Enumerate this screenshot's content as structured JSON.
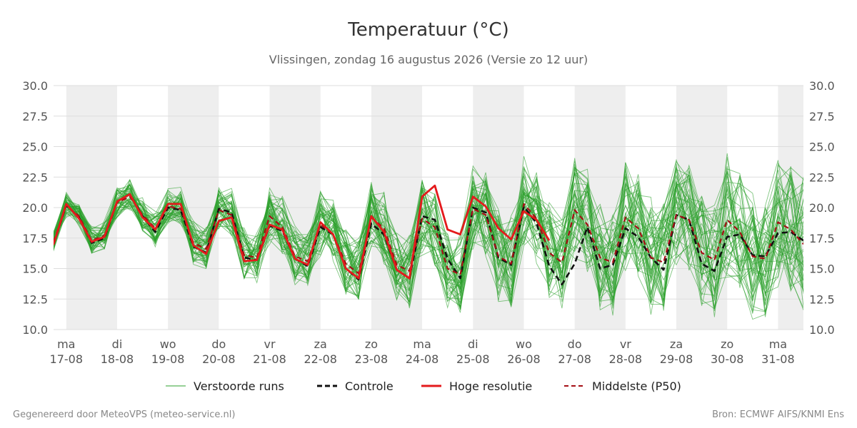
{
  "chart_data": {
    "type": "line",
    "title": "Temperatuur (°C)",
    "subtitle": "Vlissingen, zondag 16 augustus 2026 (Versie zo 12 uur)",
    "ylim": [
      10,
      30
    ],
    "yticks": [
      "10.0",
      "12.5",
      "15.0",
      "17.5",
      "20.0",
      "22.5",
      "25.0",
      "27.5",
      "30.0"
    ],
    "xlim": [
      16.75,
      31.5
    ],
    "x_ticks": [
      {
        "x": 17,
        "day": "ma",
        "date": "17-08"
      },
      {
        "x": 18,
        "day": "di",
        "date": "18-08"
      },
      {
        "x": 19,
        "day": "wo",
        "date": "19-08"
      },
      {
        "x": 20,
        "day": "do",
        "date": "20-08"
      },
      {
        "x": 21,
        "day": "vr",
        "date": "21-08"
      },
      {
        "x": 22,
        "day": "za",
        "date": "22-08"
      },
      {
        "x": 23,
        "day": "zo",
        "date": "23-08"
      },
      {
        "x": 24,
        "day": "ma",
        "date": "24-08"
      },
      {
        "x": 25,
        "day": "di",
        "date": "25-08"
      },
      {
        "x": 26,
        "day": "wo",
        "date": "26-08"
      },
      {
        "x": 27,
        "day": "do",
        "date": "27-08"
      },
      {
        "x": 28,
        "day": "vr",
        "date": "28-08"
      },
      {
        "x": 29,
        "day": "za",
        "date": "29-08"
      },
      {
        "x": 30,
        "day": "zo",
        "date": "30-08"
      },
      {
        "x": 31,
        "day": "ma",
        "date": "31-08"
      }
    ],
    "shaded_days": [
      [
        17,
        18
      ],
      [
        19,
        20
      ],
      [
        21,
        22
      ],
      [
        23,
        24
      ],
      [
        25,
        26
      ],
      [
        27,
        28
      ],
      [
        29,
        30
      ],
      [
        31,
        31.5
      ]
    ],
    "colors": {
      "ensemble": "#2ca02c",
      "control": "#111111",
      "hires": "#e41a1c",
      "median": "#a50f15",
      "shade": "#eeeeee",
      "grid": "#dddddd"
    },
    "x_points": [
      16.25,
      16.5,
      16.75,
      17.0,
      17.25,
      17.5,
      17.75,
      18.0,
      18.25,
      18.5,
      18.75,
      19.0,
      19.25,
      19.5,
      19.75,
      20.0,
      20.25,
      20.5,
      20.75,
      21.0,
      21.25,
      21.5,
      21.75,
      22.0,
      22.25,
      22.5,
      22.75,
      23.0,
      23.25,
      23.5,
      23.75,
      24.0,
      24.25,
      24.5,
      24.75,
      25.0,
      25.25,
      25.5,
      25.75,
      26.0,
      26.25,
      26.5,
      26.75,
      27.0,
      27.25,
      27.5,
      27.75,
      28.0,
      28.25,
      28.5,
      28.75,
      29.0,
      29.25,
      29.5,
      29.75,
      30.0,
      30.25,
      30.5,
      30.75,
      31.0,
      31.25,
      31.5
    ],
    "hires_x": [
      16.25,
      16.5,
      16.75,
      17.0,
      17.25,
      17.5,
      17.75,
      18.0,
      18.25,
      18.5,
      18.75,
      19.0,
      19.25,
      19.5,
      19.75,
      20.0,
      20.25,
      20.5,
      20.75,
      21.0,
      21.25,
      21.5,
      21.75,
      22.0,
      22.25,
      22.5,
      22.75,
      23.0,
      23.25,
      23.5,
      23.75,
      24.0,
      24.25,
      24.5,
      24.75,
      25.0,
      25.25,
      25.5,
      25.75,
      26.0,
      26.25,
      26.5
    ],
    "series": [
      {
        "key": "control",
        "name": "Controle",
        "values": [
          20.6,
          17.4,
          17.0,
          20.2,
          19.2,
          17.1,
          17.5,
          20.5,
          21.1,
          19.3,
          18.0,
          20.0,
          19.8,
          16.8,
          16.3,
          19.9,
          19.6,
          15.9,
          15.7,
          18.5,
          18.1,
          15.8,
          15.2,
          18.4,
          17.8,
          15.0,
          14.1,
          18.7,
          17.8,
          14.9,
          14.2,
          19.3,
          19.0,
          15.8,
          14.2,
          20.0,
          19.6,
          15.9,
          15.3,
          20.1,
          18.7,
          15.2,
          13.7,
          15.4,
          18.4,
          15.0,
          15.3,
          18.3,
          17.6,
          15.9,
          14.9,
          19.4,
          19.0,
          15.4,
          14.8,
          17.6,
          17.8,
          16.1,
          16.0,
          17.9,
          18.0,
          17.3
        ]
      },
      {
        "key": "hires",
        "name": "Hoge resolutie",
        "values": [
          20.4,
          17.5,
          17.0,
          20.3,
          19.1,
          17.2,
          17.6,
          20.5,
          21.1,
          19.2,
          18.2,
          20.3,
          20.3,
          16.9,
          16.2,
          18.9,
          19.2,
          15.6,
          15.7,
          18.6,
          18.2,
          15.8,
          15.3,
          18.8,
          17.8,
          15.0,
          14.2,
          19.3,
          18.0,
          14.9,
          14.2,
          20.9,
          21.8,
          18.2,
          17.8,
          20.9,
          20.1,
          18.3,
          17.4,
          19.7,
          19.0,
          17.3
        ]
      },
      {
        "key": "median",
        "name": "Middelste (P50)",
        "values": [
          20.5,
          17.6,
          17.2,
          20.2,
          19.3,
          17.3,
          17.7,
          20.4,
          20.9,
          19.4,
          18.3,
          20.1,
          19.9,
          17.1,
          16.6,
          19.8,
          19.4,
          16.1,
          15.9,
          19.3,
          18.4,
          16.0,
          15.6,
          18.6,
          17.8,
          15.4,
          14.6,
          19.2,
          18.3,
          15.3,
          14.8,
          19.1,
          18.4,
          15.0,
          14.5,
          19.9,
          19.4,
          16.0,
          15.4,
          20.3,
          19.1,
          16.3,
          15.5,
          19.8,
          18.6,
          15.9,
          15.5,
          19.2,
          18.3,
          15.9,
          15.5,
          19.4,
          19.0,
          16.3,
          15.7,
          19.0,
          18.0,
          16.0,
          15.8,
          18.8,
          18.2,
          17.0
        ]
      }
    ],
    "legend": [
      "Verstoorde runs",
      "Controle",
      "Hoge resolutie",
      "Middelste (P50)"
    ],
    "legend_position": "bottom-center"
  },
  "footer": {
    "left": "Gegenereerd door MeteoVPS (meteo-service.nl)",
    "right": "Bron: ECMWF AIFS/KNMI Ens"
  }
}
